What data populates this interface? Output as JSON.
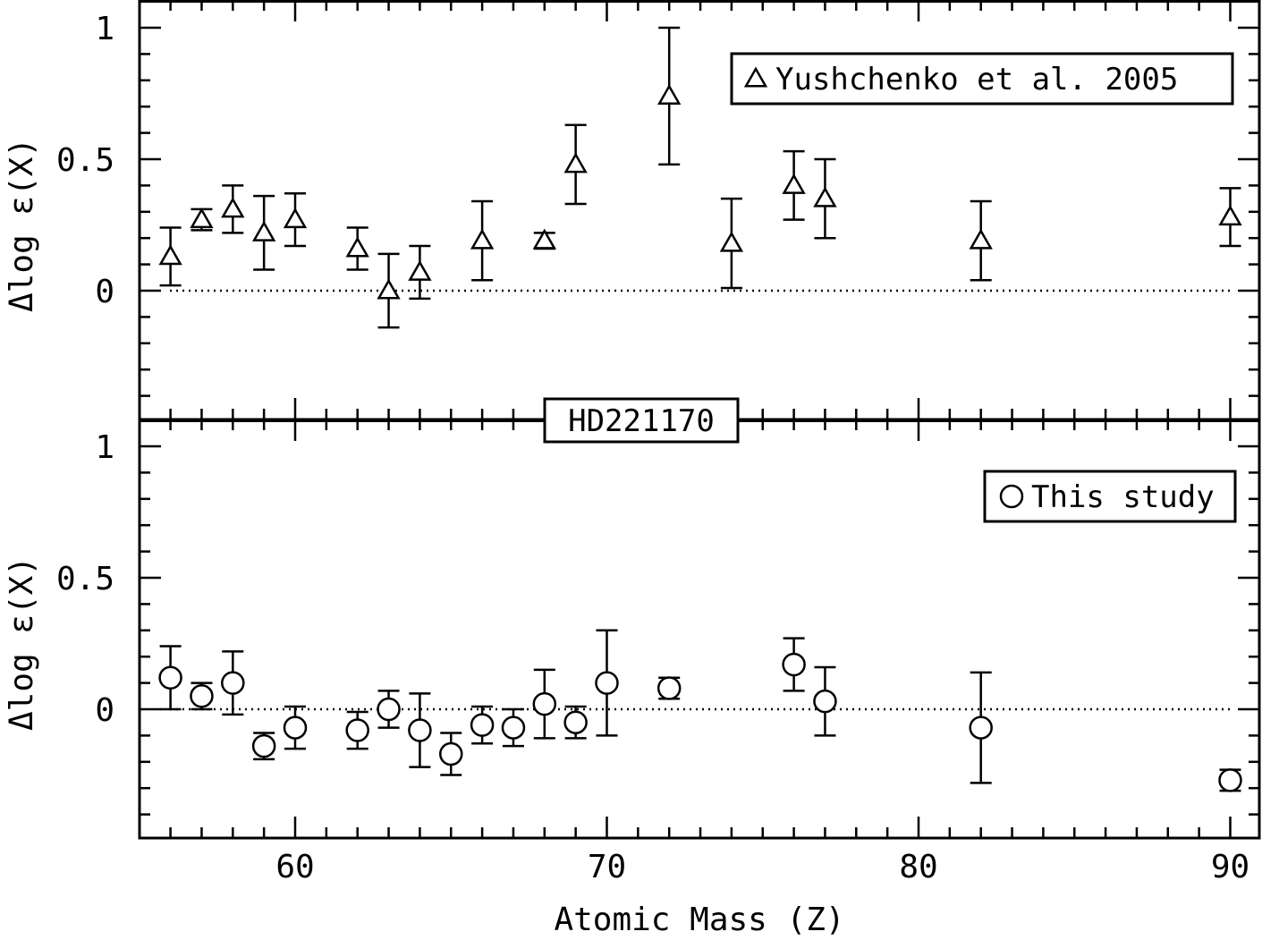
{
  "chart_data": [
    {
      "type": "scatter",
      "panel": "top",
      "legend": "Yushchenko et al. 2005",
      "legend_position": "top-right",
      "marker": "triangle",
      "ylabel": "Δlog ε(X)",
      "xlim": [
        55,
        91
      ],
      "ylim": [
        -0.45,
        1.1
      ],
      "y_ticks": [
        "1",
        "0.5",
        "0"
      ],
      "reference_line": 0,
      "points": [
        {
          "x": 56,
          "y": 0.13,
          "err": 0.11
        },
        {
          "x": 57,
          "y": 0.27,
          "err": 0.04
        },
        {
          "x": 58,
          "y": 0.31,
          "err": 0.09
        },
        {
          "x": 59,
          "y": 0.22,
          "err": 0.14
        },
        {
          "x": 60,
          "y": 0.27,
          "err": 0.1
        },
        {
          "x": 62,
          "y": 0.16,
          "err": 0.08
        },
        {
          "x": 63,
          "y": 0.0,
          "err": 0.14
        },
        {
          "x": 64,
          "y": 0.07,
          "err": 0.1
        },
        {
          "x": 66,
          "y": 0.19,
          "err": 0.15
        },
        {
          "x": 68,
          "y": 0.19,
          "err": 0.03
        },
        {
          "x": 69,
          "y": 0.48,
          "err": 0.15
        },
        {
          "x": 72,
          "y": 0.74,
          "err": 0.26
        },
        {
          "x": 74,
          "y": 0.18,
          "err": 0.17
        },
        {
          "x": 76,
          "y": 0.4,
          "err": 0.13
        },
        {
          "x": 77,
          "y": 0.35,
          "err": 0.15
        },
        {
          "x": 82,
          "y": 0.19,
          "err": 0.15
        },
        {
          "x": 90,
          "y": 0.28,
          "err": 0.11
        }
      ]
    },
    {
      "type": "scatter",
      "panel": "bottom",
      "legend": "This study",
      "legend_position": "top-right",
      "marker": "circle",
      "ylabel": "Δlog ε(X)",
      "xlabel": "Atomic Mass (Z)",
      "xlim": [
        55,
        91
      ],
      "ylim": [
        -0.45,
        1.1
      ],
      "x_ticks": [
        "60",
        "70",
        "80",
        "90"
      ],
      "y_ticks": [
        "1",
        "0.5",
        "0"
      ],
      "reference_line": 0,
      "points": [
        {
          "x": 56,
          "y": 0.12,
          "err": 0.12
        },
        {
          "x": 57,
          "y": 0.05,
          "err": 0.05
        },
        {
          "x": 58,
          "y": 0.1,
          "err": 0.12
        },
        {
          "x": 59,
          "y": -0.14,
          "err": 0.05
        },
        {
          "x": 60,
          "y": -0.07,
          "err": 0.08
        },
        {
          "x": 62,
          "y": -0.08,
          "err": 0.07
        },
        {
          "x": 63,
          "y": 0.0,
          "err": 0.07
        },
        {
          "x": 64,
          "y": -0.08,
          "err": 0.14
        },
        {
          "x": 65,
          "y": -0.17,
          "err": 0.08
        },
        {
          "x": 66,
          "y": -0.06,
          "err": 0.07
        },
        {
          "x": 67,
          "y": -0.07,
          "err": 0.07
        },
        {
          "x": 68,
          "y": 0.02,
          "err": 0.13
        },
        {
          "x": 69,
          "y": -0.05,
          "err": 0.06
        },
        {
          "x": 70,
          "y": 0.1,
          "err": 0.2
        },
        {
          "x": 72,
          "y": 0.08,
          "err": 0.04
        },
        {
          "x": 76,
          "y": 0.17,
          "err": 0.1
        },
        {
          "x": 77,
          "y": 0.03,
          "err": 0.13
        },
        {
          "x": 82,
          "y": -0.07,
          "err": 0.21
        },
        {
          "x": 90,
          "y": -0.27,
          "err": 0.04
        }
      ]
    }
  ],
  "center_label": "HD221170"
}
